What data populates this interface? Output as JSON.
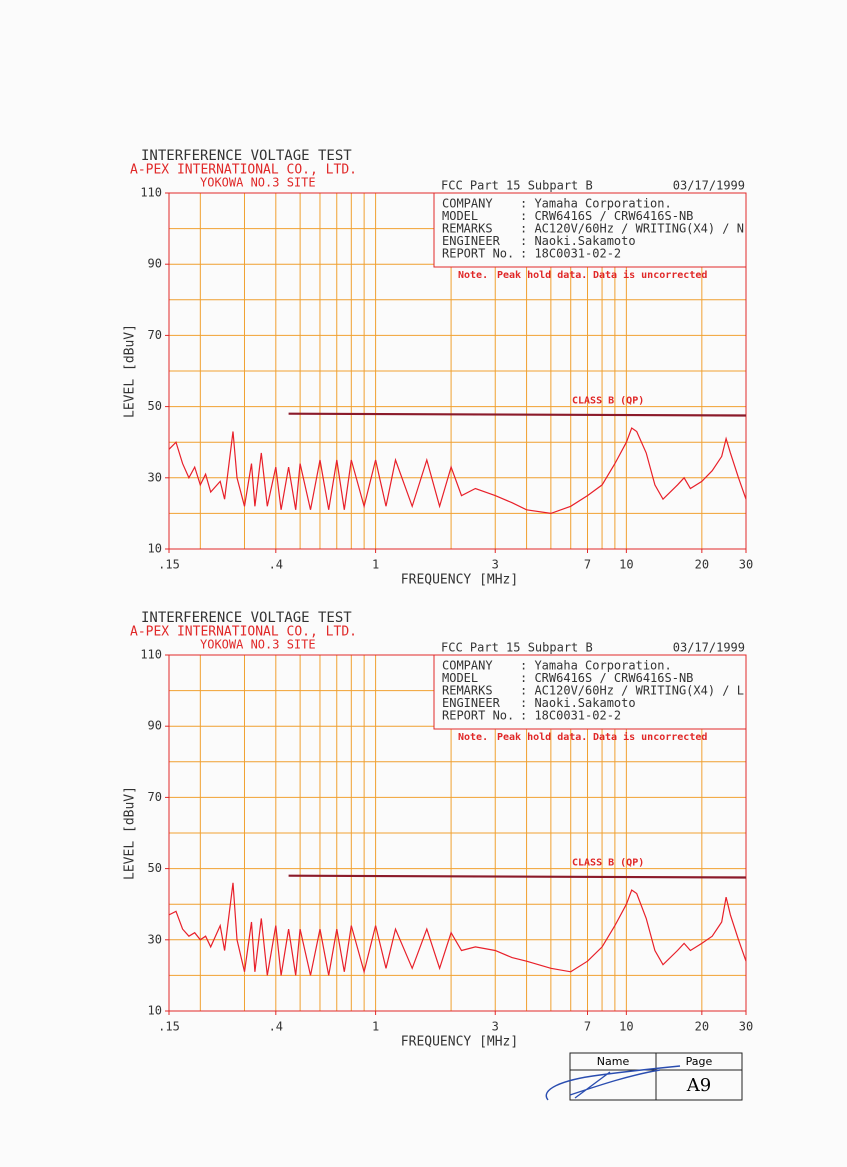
{
  "chart_data": [
    {
      "type": "line",
      "title": "INTERFERENCE VOLTAGE TEST",
      "org": "A-PEX INTERNATIONAL CO., LTD.",
      "site": "YOKOWA NO.3 SITE",
      "standard": "FCC Part 15 Subpart B",
      "date": "03/17/1999",
      "info": [
        {
          "label": "COMPANY",
          "value": ": Yamaha Corporation."
        },
        {
          "label": "MODEL",
          "value": ": CRW6416S / CRW6416S-NB"
        },
        {
          "label": "REMARKS",
          "value": ": AC120V/60Hz / WRITING(X4) / N"
        },
        {
          "label": "ENGINEER",
          "value": ": Naoki.Sakamoto"
        },
        {
          "label": "REPORT No.",
          "value": ": 18C0031-02-2"
        }
      ],
      "notes": [
        "Note.",
        "Peak hold data.",
        "Data is uncorrected"
      ],
      "xlabel": "FREQUENCY [MHz]",
      "ylabel": "LEVEL [dBuV]",
      "log_x": true,
      "xlim": [
        0.15,
        30
      ],
      "xticks": [
        {
          "value": 0.15,
          "label": ".15"
        },
        {
          "value": 0.4,
          "label": ".4"
        },
        1,
        3,
        7,
        10,
        20,
        30
      ],
      "xgrid": [
        0.2,
        0.3,
        0.4,
        0.5,
        0.6,
        0.7,
        0.8,
        0.9,
        1,
        2,
        3,
        4,
        5,
        6,
        7,
        8,
        9,
        10,
        20
      ],
      "ylim": [
        10,
        110
      ],
      "yticks": [
        10,
        30,
        50,
        70,
        90,
        110
      ],
      "ygrid": [
        20,
        30,
        40,
        50,
        60,
        70,
        80,
        90,
        100
      ],
      "series": [
        {
          "color": "#e8202a",
          "x": [
            0.15,
            0.16,
            0.17,
            0.18,
            0.19,
            0.2,
            0.21,
            0.22,
            0.24,
            0.25,
            0.27,
            0.28,
            0.3,
            0.32,
            0.33,
            0.35,
            0.37,
            0.4,
            0.42,
            0.45,
            0.48,
            0.5,
            0.55,
            0.6,
            0.65,
            0.7,
            0.75,
            0.8,
            0.9,
            1,
            1.1,
            1.2,
            1.4,
            1.6,
            1.8,
            2,
            2.2,
            2.5,
            3,
            3.5,
            4,
            5,
            6,
            7,
            8,
            9,
            10,
            10.5,
            11,
            12,
            13,
            14,
            16,
            17,
            18,
            20,
            22,
            24,
            25,
            26,
            28,
            30
          ],
          "values": [
            38,
            40,
            34,
            30,
            33,
            28,
            31,
            26,
            29,
            24,
            43,
            30,
            22,
            34,
            22,
            37,
            22,
            33,
            21,
            33,
            21,
            34,
            21,
            35,
            21,
            35,
            21,
            35,
            22,
            35,
            22,
            35,
            22,
            35,
            22,
            33,
            25,
            27,
            25,
            23,
            21,
            20,
            22,
            25,
            28,
            34,
            40,
            44,
            43,
            37,
            28,
            24,
            28,
            30,
            27,
            29,
            32,
            36,
            41,
            37,
            30,
            24
          ]
        },
        {
          "name": "CLASS B (QP)",
          "color": "#8b1a2a",
          "x": [
            0.45,
            30
          ],
          "values": [
            48,
            47.5
          ]
        }
      ]
    },
    {
      "type": "line",
      "title": "INTERFERENCE VOLTAGE TEST",
      "org": "A-PEX INTERNATIONAL CO., LTD.",
      "site": "YOKOWA NO.3 SITE",
      "standard": "FCC Part 15 Subpart B",
      "date": "03/17/1999",
      "info": [
        {
          "label": "COMPANY",
          "value": ": Yamaha Corporation."
        },
        {
          "label": "MODEL",
          "value": ": CRW6416S / CRW6416S-NB"
        },
        {
          "label": "REMARKS",
          "value": ": AC120V/60Hz / WRITING(X4) / L"
        },
        {
          "label": "ENGINEER",
          "value": ": Naoki.Sakamoto"
        },
        {
          "label": "REPORT No.",
          "value": ": 18C0031-02-2"
        }
      ],
      "notes": [
        "Note.",
        "Peak hold data.",
        "Data is uncorrected"
      ],
      "xlabel": "FREQUENCY [MHz]",
      "ylabel": "LEVEL [dBuV]",
      "log_x": true,
      "xlim": [
        0.15,
        30
      ],
      "xticks": [
        {
          "value": 0.15,
          "label": ".15"
        },
        {
          "value": 0.4,
          "label": ".4"
        },
        1,
        3,
        7,
        10,
        20,
        30
      ],
      "xgrid": [
        0.2,
        0.3,
        0.4,
        0.5,
        0.6,
        0.7,
        0.8,
        0.9,
        1,
        2,
        3,
        4,
        5,
        6,
        7,
        8,
        9,
        10,
        20
      ],
      "ylim": [
        10,
        110
      ],
      "yticks": [
        10,
        30,
        50,
        70,
        90,
        110
      ],
      "ygrid": [
        20,
        30,
        40,
        50,
        60,
        70,
        80,
        90,
        100
      ],
      "series": [
        {
          "color": "#e8202a",
          "x": [
            0.15,
            0.16,
            0.17,
            0.18,
            0.19,
            0.2,
            0.21,
            0.22,
            0.24,
            0.25,
            0.27,
            0.28,
            0.3,
            0.32,
            0.33,
            0.35,
            0.37,
            0.4,
            0.42,
            0.45,
            0.48,
            0.5,
            0.55,
            0.6,
            0.65,
            0.7,
            0.75,
            0.8,
            0.9,
            1,
            1.1,
            1.2,
            1.4,
            1.6,
            1.8,
            2,
            2.2,
            2.5,
            3,
            3.5,
            4,
            5,
            6,
            7,
            8,
            9,
            10,
            10.5,
            11,
            12,
            13,
            14,
            16,
            17,
            18,
            20,
            22,
            24,
            25,
            26,
            28,
            30
          ],
          "values": [
            37,
            38,
            33,
            31,
            32,
            30,
            31,
            28,
            34,
            27,
            46,
            30,
            21,
            35,
            21,
            36,
            20,
            34,
            20,
            33,
            20,
            33,
            20,
            33,
            20,
            33,
            21,
            34,
            21,
            34,
            22,
            33,
            22,
            33,
            22,
            32,
            27,
            28,
            27,
            25,
            24,
            22,
            21,
            24,
            28,
            34,
            40,
            44,
            43,
            36,
            27,
            23,
            27,
            29,
            27,
            29,
            31,
            35,
            42,
            37,
            30,
            24
          ]
        },
        {
          "name": "CLASS B (QP)",
          "color": "#8b1a2a",
          "x": [
            0.45,
            30
          ],
          "values": [
            48,
            47.5
          ]
        }
      ]
    }
  ],
  "footer": {
    "name_label": "Name",
    "page_label": "Page",
    "page": "A9"
  }
}
